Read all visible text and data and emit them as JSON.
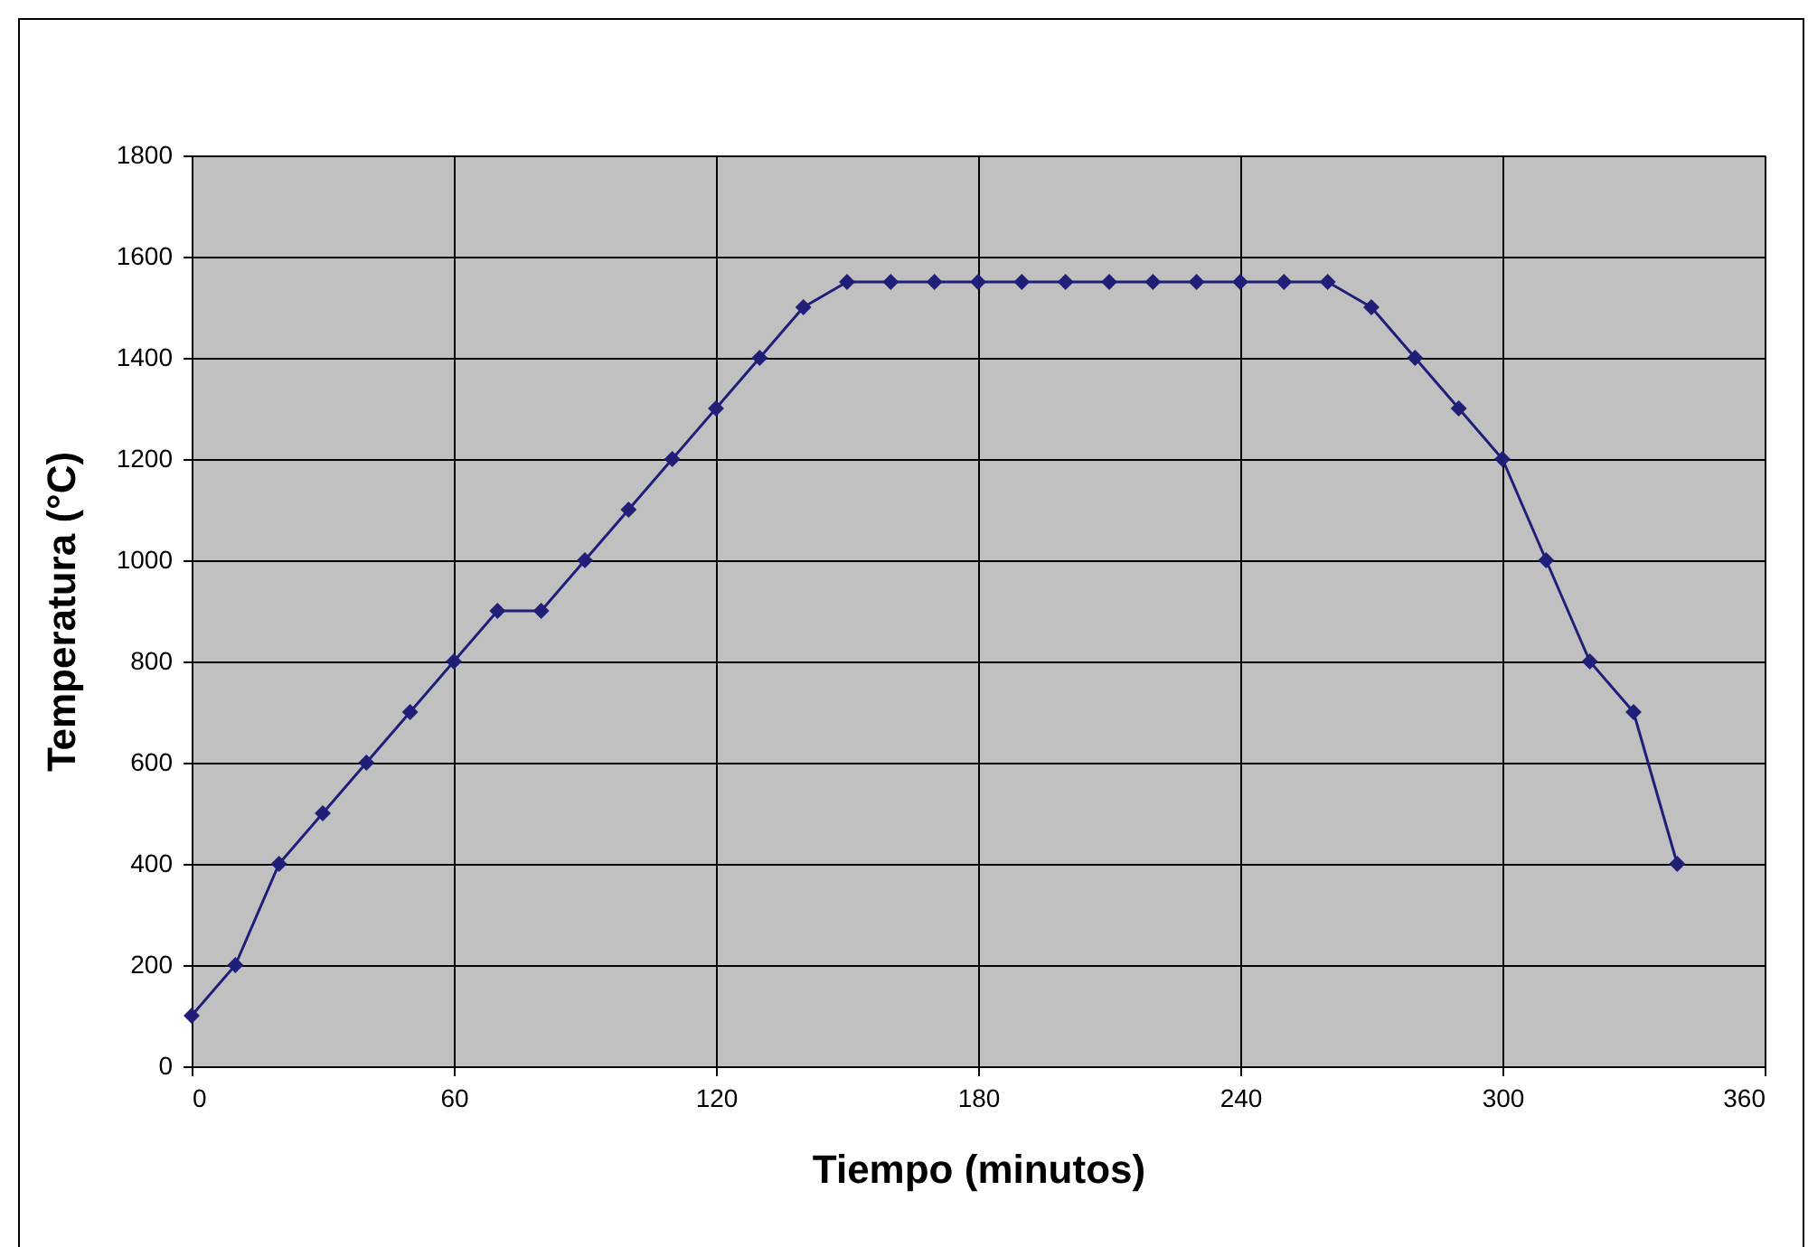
{
  "chart_data": {
    "type": "line",
    "xlabel": "Tiempo (minutos)",
    "ylabel": "Temperatura (°C)",
    "x": [
      0,
      10,
      20,
      30,
      40,
      50,
      60,
      70,
      80,
      90,
      100,
      110,
      120,
      130,
      140,
      150,
      160,
      170,
      180,
      190,
      200,
      210,
      220,
      230,
      240,
      250,
      260,
      270,
      280,
      290,
      300,
      310,
      320,
      330,
      340
    ],
    "series": [
      {
        "color": "#1f1f78",
        "values": [
          100,
          200,
          400,
          500,
          600,
          700,
          800,
          900,
          900,
          1000,
          1100,
          1200,
          1300,
          1400,
          1500,
          1550,
          1550,
          1550,
          1550,
          1550,
          1550,
          1550,
          1550,
          1550,
          1550,
          1550,
          1550,
          1500,
          1400,
          1300,
          1200,
          1000,
          800,
          700,
          400
        ]
      }
    ],
    "xlim": [
      0,
      360
    ],
    "xticks": [
      0,
      60,
      120,
      180,
      240,
      300,
      360
    ],
    "ylim": [
      0,
      1800
    ],
    "yticks": [
      0,
      200,
      400,
      600,
      800,
      1000,
      1200,
      1400,
      1600,
      1800
    ],
    "grid": true,
    "legend": false,
    "marker": "diamond",
    "line_style": "solid"
  }
}
